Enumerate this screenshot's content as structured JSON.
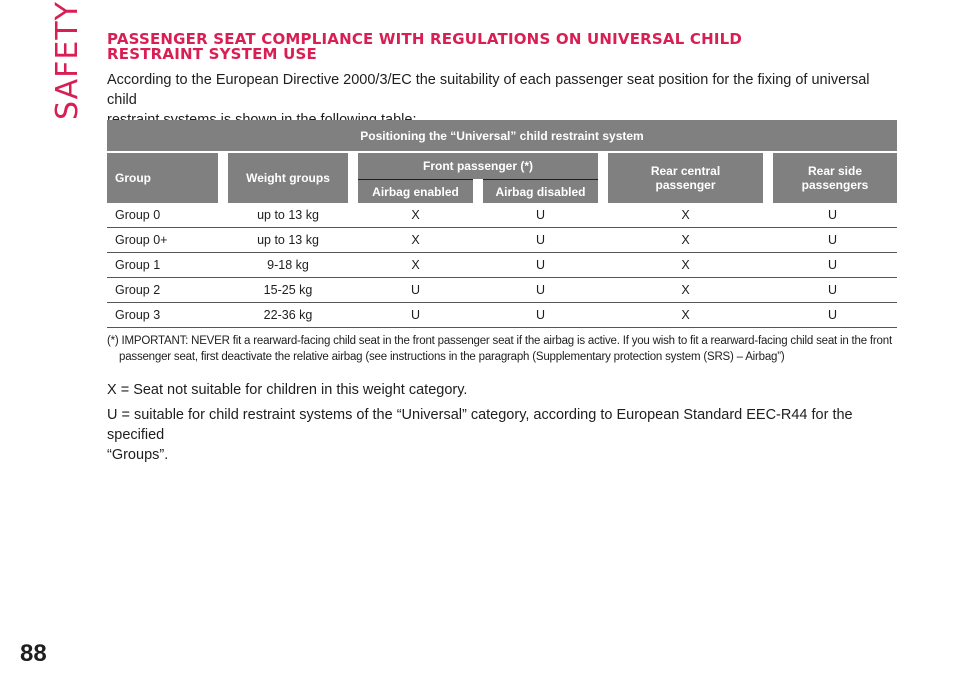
{
  "side_label": "SAFETY",
  "page_number": "88",
  "section": {
    "title_line1": "PASSENGER SEAT COMPLIANCE WITH REGULATIONS ON UNIVERSAL CHILD",
    "title_line2": "RESTRAINT SYSTEM USE",
    "intro_line1": "According to the European Directive 2000/3/EC the suitability of each passenger seat position for the fixing of universal child",
    "intro_line2": "restraint systems is shown in the following table:"
  },
  "table": {
    "caption": "Positioning the “Universal” child restraint system",
    "headers": {
      "group": "Group",
      "weight_groups": "Weight groups",
      "front_passenger": "Front passenger (*)",
      "airbag_enabled": "Airbag enabled",
      "airbag_disabled": "Airbag disabled",
      "rear_central_line1": "Rear central",
      "rear_central_line2": "passenger",
      "rear_side_line1": "Rear side",
      "rear_side_line2": "passengers"
    },
    "rows": [
      {
        "group": "Group 0",
        "weight": "up to 13 kg",
        "airbag_enabled": "X",
        "airbag_disabled": "U",
        "rear_central": "X",
        "rear_side": "U"
      },
      {
        "group": "Group 0+",
        "weight": "up to 13 kg",
        "airbag_enabled": "X",
        "airbag_disabled": "U",
        "rear_central": "X",
        "rear_side": "U"
      },
      {
        "group": "Group 1",
        "weight": "9-18 kg",
        "airbag_enabled": "X",
        "airbag_disabled": "U",
        "rear_central": "X",
        "rear_side": "U"
      },
      {
        "group": "Group 2",
        "weight": "15-25 kg",
        "airbag_enabled": "U",
        "airbag_disabled": "U",
        "rear_central": "X",
        "rear_side": "U"
      },
      {
        "group": "Group 3",
        "weight": "22-36 kg",
        "airbag_enabled": "U",
        "airbag_disabled": "U",
        "rear_central": "X",
        "rear_side": "U"
      }
    ]
  },
  "footnote": "(*) IMPORTANT: NEVER fit a rearward-facing child seat in the front passenger seat if the airbag is active. If you wish to fit a rearward-facing child seat in the front passenger seat, first deactivate the relative airbag (see instructions in the paragraph (Supplementary protection system (SRS) – Airbag”)",
  "legend": {
    "x_line": "X = Seat not suitable for children in this weight category.",
    "u_line1": "U = suitable for child restraint systems of the “Universal” category, according to European Standard EEC-R44 for the specified",
    "u_line2": "“Groups”."
  },
  "colors": {
    "accent": "#d91e53",
    "header_bg": "#808080",
    "text": "#1e1e1e"
  }
}
